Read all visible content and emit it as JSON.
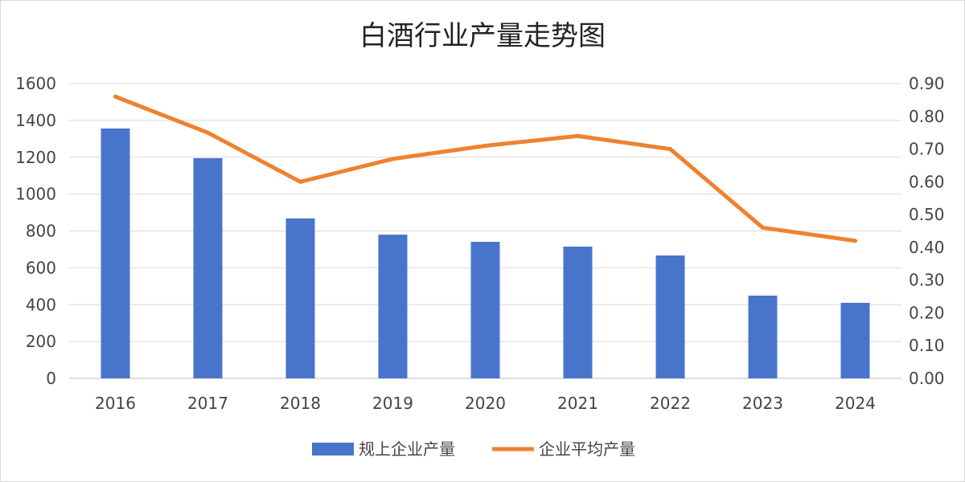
{
  "chart_data": {
    "type": "bar+line",
    "title": "白酒行业产量走势图",
    "categories": [
      "2016",
      "2017",
      "2018",
      "2019",
      "2020",
      "2021",
      "2022",
      "2023",
      "2024"
    ],
    "series": [
      {
        "name": "规上企业产量",
        "type": "bar",
        "axis": "left",
        "color": "#4874CB",
        "values": [
          1356,
          1195,
          868,
          780,
          741,
          715,
          667,
          449,
          410
        ]
      },
      {
        "name": "企业平均产量",
        "type": "line",
        "axis": "right",
        "color": "#EE822F",
        "values": [
          0.86,
          0.75,
          0.6,
          0.67,
          0.71,
          0.74,
          0.7,
          0.46,
          0.42
        ]
      }
    ],
    "y_left": {
      "range": [
        0,
        1600
      ],
      "ticks": [
        "0",
        "200",
        "400",
        "600",
        "800",
        "1000",
        "1200",
        "1400",
        "1600"
      ]
    },
    "y_right": {
      "range": [
        0,
        0.9
      ],
      "ticks": [
        "0.00",
        "0.10",
        "0.20",
        "0.30",
        "0.40",
        "0.50",
        "0.60",
        "0.70",
        "0.80",
        "0.90"
      ]
    },
    "grid": true,
    "legend": "bottom"
  }
}
